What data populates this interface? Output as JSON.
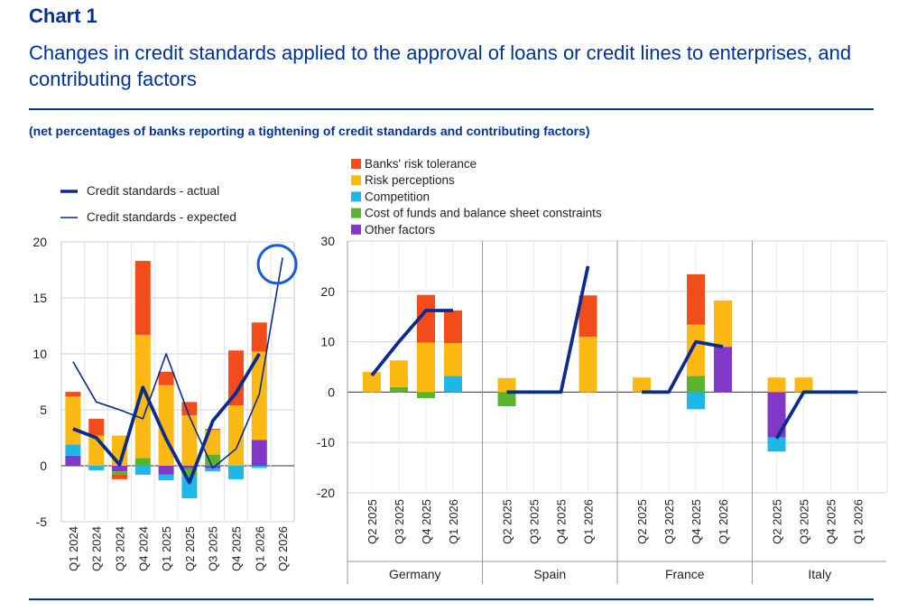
{
  "header": {
    "label": "Chart 1",
    "title": "Changes in credit standards applied to the approval of loans or credit lines to enterprises, and contributing factors",
    "subtitle": "(net percentages of banks reporting a tightening of credit standards and contributing factors)"
  },
  "colors": {
    "banks_risk_tolerance": "#f24c1a",
    "risk_perceptions": "#fdb913",
    "competition": "#1fb6e8",
    "cost_of_funds": "#5bb42d",
    "other_factors": "#8137c8",
    "line": "#0b2b8f",
    "highlight_circle": "#1c5bd6"
  },
  "legend_factors": [
    {
      "label": "Banks' risk tolerance",
      "key": "banks_risk_tolerance"
    },
    {
      "label": "Risk perceptions",
      "key": "risk_perceptions"
    },
    {
      "label": "Competition",
      "key": "competition"
    },
    {
      "label": "Cost of funds and balance sheet constraints",
      "key": "cost_of_funds"
    },
    {
      "label": "Other factors",
      "key": "other_factors"
    }
  ],
  "legend_lines": [
    {
      "label": "Credit standards - actual",
      "style": "thick"
    },
    {
      "label": "Credit standards - expected",
      "style": "thin"
    }
  ],
  "chart_data": [
    {
      "type": "bar",
      "stacked": true,
      "categories": [
        "Q1 2024",
        "Q2 2024",
        "Q3 2024",
        "Q4 2024",
        "Q1 2025",
        "Q2 2025",
        "Q3 2025",
        "Q4 2025",
        "Q1 2026",
        "Q2 2026"
      ],
      "ylim": [
        -5,
        20
      ],
      "yticks": [
        -5,
        0,
        5,
        10,
        15,
        20
      ],
      "grid": true,
      "series": [
        {
          "name": "Other factors",
          "key": "other_factors",
          "values": [
            0.9,
            0.0,
            -0.5,
            0.0,
            -0.8,
            -0.2,
            -0.2,
            0.0,
            2.3,
            null
          ]
        },
        {
          "name": "Cost of funds and balance sheet constraints",
          "key": "cost_of_funds",
          "values": [
            0.0,
            0.0,
            -0.3,
            0.7,
            0.0,
            -0.7,
            1.0,
            0.0,
            0.0,
            null
          ]
        },
        {
          "name": "Competition",
          "key": "competition",
          "values": [
            1.0,
            -0.4,
            0.0,
            -0.8,
            -0.5,
            -2.0,
            -0.3,
            -1.2,
            -0.2,
            null
          ]
        },
        {
          "name": "Risk perceptions",
          "key": "risk_perceptions",
          "values": [
            4.3,
            2.7,
            2.7,
            11.0,
            7.2,
            4.5,
            2.2,
            5.4,
            7.9,
            null
          ]
        },
        {
          "name": "Banks' risk tolerance",
          "key": "banks_risk_tolerance",
          "values": [
            0.4,
            1.5,
            -0.4,
            6.6,
            1.2,
            1.2,
            0.1,
            4.9,
            2.6,
            null
          ]
        }
      ],
      "lines": [
        {
          "name": "Credit standards - actual",
          "style": "thick",
          "values": [
            3.3,
            2.5,
            0.1,
            7.0,
            2.4,
            -1.5,
            4.0,
            6.5,
            10.0,
            null
          ]
        },
        {
          "name": "Credit standards - expected",
          "style": "thin",
          "values": [
            9.3,
            5.7,
            5.0,
            4.2,
            10.0,
            4.4,
            -0.2,
            1.5,
            6.4,
            18.6
          ]
        }
      ],
      "highlight": {
        "category": "Q2 2026",
        "value": 18.0
      }
    },
    {
      "type": "bar",
      "stacked": true,
      "groups": [
        "Germany",
        "Spain",
        "France",
        "Italy"
      ],
      "categories": [
        "Q2 2025",
        "Q3 2025",
        "Q4 2025",
        "Q1 2026"
      ],
      "ylim": [
        -20,
        30
      ],
      "yticks": [
        -20,
        -10,
        0,
        10,
        20,
        30
      ],
      "grid": true,
      "series": [
        {
          "name": "Other factors",
          "key": "other_factors",
          "values": {
            "Germany": [
              0,
              0,
              0,
              0
            ],
            "Spain": [
              0,
              0,
              0,
              0
            ],
            "France": [
              0,
              0,
              0,
              9.0
            ],
            "Italy": [
              -9.0,
              0,
              null,
              null
            ]
          }
        },
        {
          "name": "Cost of funds and balance sheet constraints",
          "key": "cost_of_funds",
          "values": {
            "Germany": [
              0,
              1.0,
              -1.2,
              0
            ],
            "Spain": [
              -2.8,
              0,
              0,
              0
            ],
            "France": [
              0,
              0,
              3.2,
              0
            ],
            "Italy": [
              0,
              0,
              null,
              null
            ]
          }
        },
        {
          "name": "Competition",
          "key": "competition",
          "values": {
            "Germany": [
              0,
              0,
              0,
              3.2
            ],
            "Spain": [
              0,
              0,
              0,
              0
            ],
            "France": [
              0,
              0,
              -3.4,
              0
            ],
            "Italy": [
              -2.8,
              0,
              null,
              null
            ]
          }
        },
        {
          "name": "Risk perceptions",
          "key": "risk_perceptions",
          "values": {
            "Germany": [
              4.0,
              5.3,
              9.8,
              6.5
            ],
            "Spain": [
              2.8,
              0,
              0,
              11.0
            ],
            "France": [
              2.9,
              0,
              10.2,
              9.2
            ],
            "Italy": [
              2.9,
              2.9,
              null,
              null
            ]
          }
        },
        {
          "name": "Banks' risk tolerance",
          "key": "banks_risk_tolerance",
          "values": {
            "Germany": [
              0,
              0,
              9.5,
              6.5
            ],
            "Spain": [
              0,
              0,
              0,
              8.2
            ],
            "France": [
              0,
              0,
              10.0,
              0
            ],
            "Italy": [
              0,
              0,
              null,
              null
            ]
          }
        }
      ],
      "lines": [
        {
          "name": "Credit standards - actual",
          "style": "thick",
          "values": {
            "Germany": [
              3.3,
              10.0,
              16.2,
              16.2
            ],
            "Spain": [
              0,
              0,
              0,
              25.0
            ],
            "France": [
              0,
              0,
              10.0,
              9.0
            ],
            "Italy": [
              -9.2,
              0,
              0,
              0
            ]
          }
        }
      ]
    }
  ]
}
